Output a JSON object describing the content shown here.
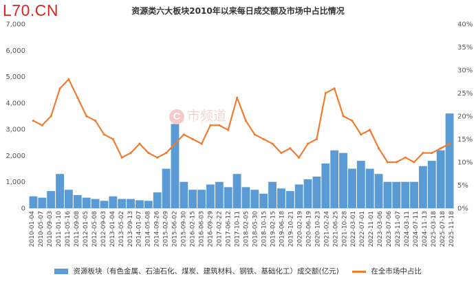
{
  "logo": "L70.CN",
  "watermark": {
    "brand_letter": "C",
    "text": "市频道"
  },
  "chart_data": {
    "type": "bar+line",
    "title": "资源类六大板块2010年以来每日成交额及市场中占比情况",
    "y_left": {
      "ticks": [
        "0",
        "1,000",
        "2,000",
        "3,000",
        "4,000",
        "5,000",
        "6,000",
        "7,000"
      ],
      "min": 0,
      "max": 7000
    },
    "y_right": {
      "ticks": [
        "0%",
        "5%",
        "10%",
        "15%",
        "20%",
        "25%",
        "30%",
        "35%",
        "40%"
      ],
      "min": 0,
      "max": 40
    },
    "x_ticks": [
      "2010-01-04",
      "2010-05-07",
      "2010-09-03",
      "2011-01-10",
      "2011-05-16",
      "2011-09-08",
      "2012-01-05",
      "2012-05-08",
      "2012-09-03",
      "2013-01-04",
      "2013-05-02",
      "2013-09-13",
      "2014-01-07",
      "2014-05-08",
      "2014-09-26",
      "2015-02-09",
      "2015-06-02",
      "2015-09-30",
      "2016-02-15",
      "2016-06-03",
      "2016-09-29",
      "2017-02-22",
      "2017-06-12",
      "2017-10-11",
      "2018-02-05",
      "2018-05-30",
      "2018-10-15",
      "2019-02-15",
      "2019-06-18",
      "2019-10-21",
      "2020-02-19",
      "2020-06-19",
      "2020-10-23",
      "2021-02-24",
      "2021-06-25",
      "2021-10-28",
      "2022-03-01",
      "2022-07-01",
      "2022-11-01",
      "2023-03-06",
      "2023-07-06",
      "2023-11-07",
      "2024-03-11",
      "2024-07-11",
      "2024-11-13",
      "2025-03-18",
      "2025-07-18",
      "2025-11-18"
    ],
    "series": [
      {
        "name": "资源板块（有色金属、石油石化、煤炭、建筑材料、钢铁、基础化工）成交额(亿元)",
        "type": "bar",
        "axis": "left",
        "color": "#5b9bd5",
        "x": [
          "2010-01",
          "2010-05",
          "2010-09",
          "2011-01",
          "2011-05",
          "2011-09",
          "2012-01",
          "2012-05",
          "2012-09",
          "2013-01",
          "2013-05",
          "2013-09",
          "2014-01",
          "2014-05",
          "2014-09",
          "2015-02",
          "2015-06",
          "2015-09",
          "2016-02",
          "2016-06",
          "2016-09",
          "2017-02",
          "2017-06",
          "2017-10",
          "2018-02",
          "2018-05",
          "2018-10",
          "2019-02",
          "2019-06",
          "2019-10",
          "2020-02",
          "2020-06",
          "2020-10",
          "2021-02",
          "2021-06",
          "2021-10",
          "2022-03",
          "2022-07",
          "2022-11",
          "2023-03",
          "2023-07",
          "2023-11",
          "2024-03",
          "2024-07",
          "2024-11",
          "2025-03",
          "2025-07",
          "2025-11"
        ],
        "values": [
          450,
          400,
          650,
          1300,
          700,
          500,
          400,
          350,
          280,
          450,
          350,
          350,
          300,
          280,
          600,
          1500,
          3200,
          1000,
          700,
          700,
          900,
          1000,
          800,
          1300,
          800,
          700,
          550,
          1000,
          750,
          650,
          900,
          1100,
          1200,
          1700,
          2200,
          2100,
          1500,
          1800,
          1500,
          1300,
          1000,
          1000,
          1000,
          1000,
          1600,
          1800,
          2200,
          3600
        ]
      },
      {
        "name": "在全市场中占比",
        "type": "line",
        "axis": "right",
        "color": "#ed7d31",
        "x": [
          "2010-01",
          "2010-05",
          "2010-09",
          "2011-01",
          "2011-05",
          "2011-09",
          "2012-01",
          "2012-05",
          "2012-09",
          "2013-01",
          "2013-05",
          "2013-09",
          "2014-01",
          "2014-05",
          "2014-09",
          "2015-02",
          "2015-06",
          "2015-09",
          "2016-02",
          "2016-06",
          "2016-09",
          "2017-02",
          "2017-06",
          "2017-10",
          "2018-02",
          "2018-05",
          "2018-10",
          "2019-02",
          "2019-06",
          "2019-10",
          "2020-02",
          "2020-06",
          "2020-10",
          "2021-02",
          "2021-06",
          "2021-10",
          "2022-03",
          "2022-07",
          "2022-11",
          "2023-03",
          "2023-07",
          "2023-11",
          "2024-03",
          "2024-07",
          "2024-11",
          "2025-03",
          "2025-07",
          "2025-11"
        ],
        "values": [
          19,
          18,
          20,
          26,
          28,
          24,
          20,
          19,
          16,
          15,
          11,
          12,
          14,
          12,
          11,
          12,
          14,
          16,
          15,
          14,
          18,
          18,
          17,
          24,
          19,
          16,
          15,
          14,
          12,
          13,
          11,
          14,
          15,
          25,
          26,
          20,
          19,
          16,
          17,
          13,
          10,
          10,
          11,
          10,
          12,
          12,
          13,
          14
        ]
      }
    ],
    "legend_position": "bottom",
    "grid": false
  }
}
